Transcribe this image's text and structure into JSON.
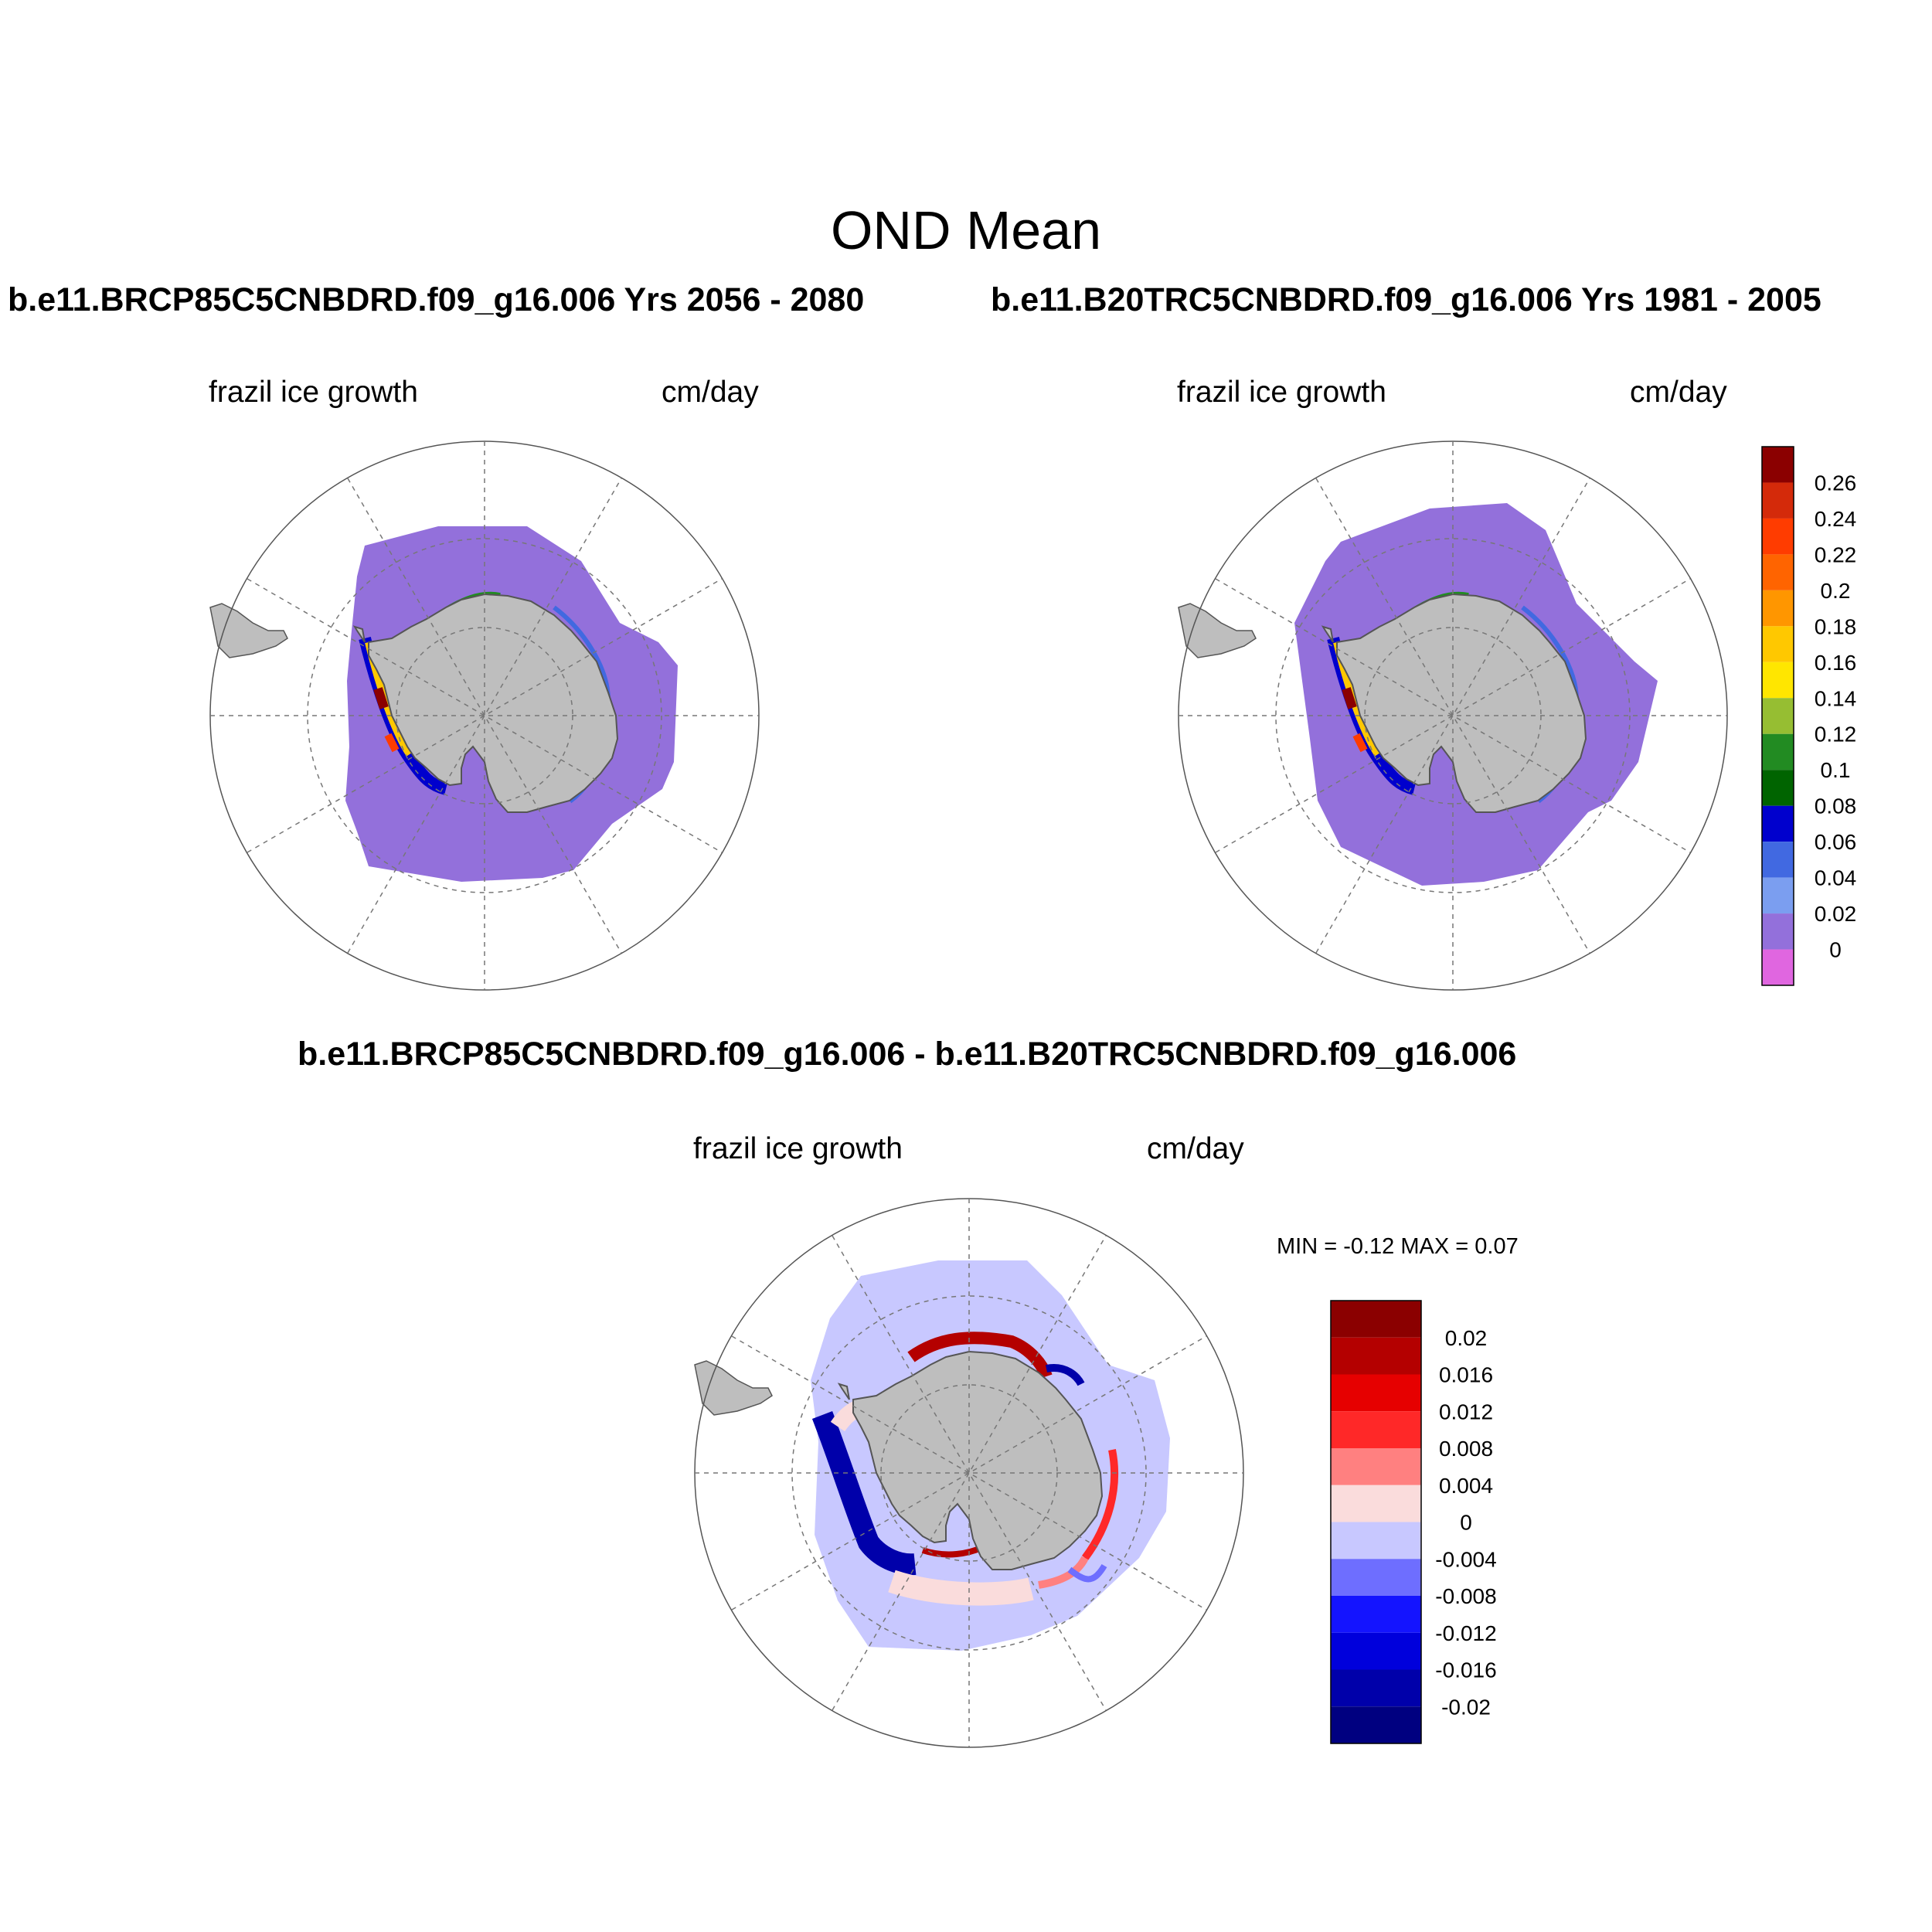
{
  "title": "OND Mean",
  "panels": [
    {
      "id": "future",
      "title": "b.e11.BRCP85C5CNBDRD.f09_g16.006  Yrs 2056 - 2080",
      "variable": "frazil ice growth",
      "units": "cm/day"
    },
    {
      "id": "historical",
      "title": "b.e11.B20TRC5CNBDRD.f09_g16.006  Yrs 1981 - 2005",
      "variable": "frazil ice growth",
      "units": "cm/day"
    },
    {
      "id": "difference",
      "title": "b.e11.BRCP85C5CNBDRD.f09_g16.006 - b.e11.B20TRC5CNBDRD.f09_g16.006",
      "variable": "frazil ice growth",
      "units": "cm/day",
      "stats": "MIN =  -0.12 MAX =   0.07"
    }
  ],
  "colorbar_mean": {
    "labels": [
      "0.26",
      "0.24",
      "0.22",
      "0.2",
      "0.18",
      "0.16",
      "0.14",
      "0.12",
      "0.1",
      "0.08",
      "0.06",
      "0.04",
      "0.02",
      "0"
    ],
    "colors": [
      "#8b0000",
      "#d42a0a",
      "#ff3c00",
      "#ff6400",
      "#ff9600",
      "#ffc800",
      "#ffe600",
      "#96be32",
      "#228b22",
      "#006400",
      "#0000cd",
      "#4169e1",
      "#7b9ef0",
      "#9370db",
      "#e066e0"
    ]
  },
  "colorbar_diff": {
    "labels": [
      "0.02",
      "0.016",
      "0.012",
      "0.008",
      "0.004",
      "0",
      "-0.004",
      "-0.008",
      "-0.012",
      "-0.016",
      "-0.02"
    ],
    "colors": [
      "#8b0000",
      "#b40000",
      "#e60000",
      "#ff2828",
      "#ff8080",
      "#fadcdc",
      "#c8c8ff",
      "#6e6eff",
      "#1414ff",
      "#0000dc",
      "#0000aa",
      "#000080"
    ]
  },
  "map_colors": {
    "land": "#bebebe",
    "sea_ice_mean": "#9370db",
    "sea_ice_diff": "#c8c8ff",
    "coastal_positive": "#b40000",
    "coastal_negative": "#0000aa"
  }
}
